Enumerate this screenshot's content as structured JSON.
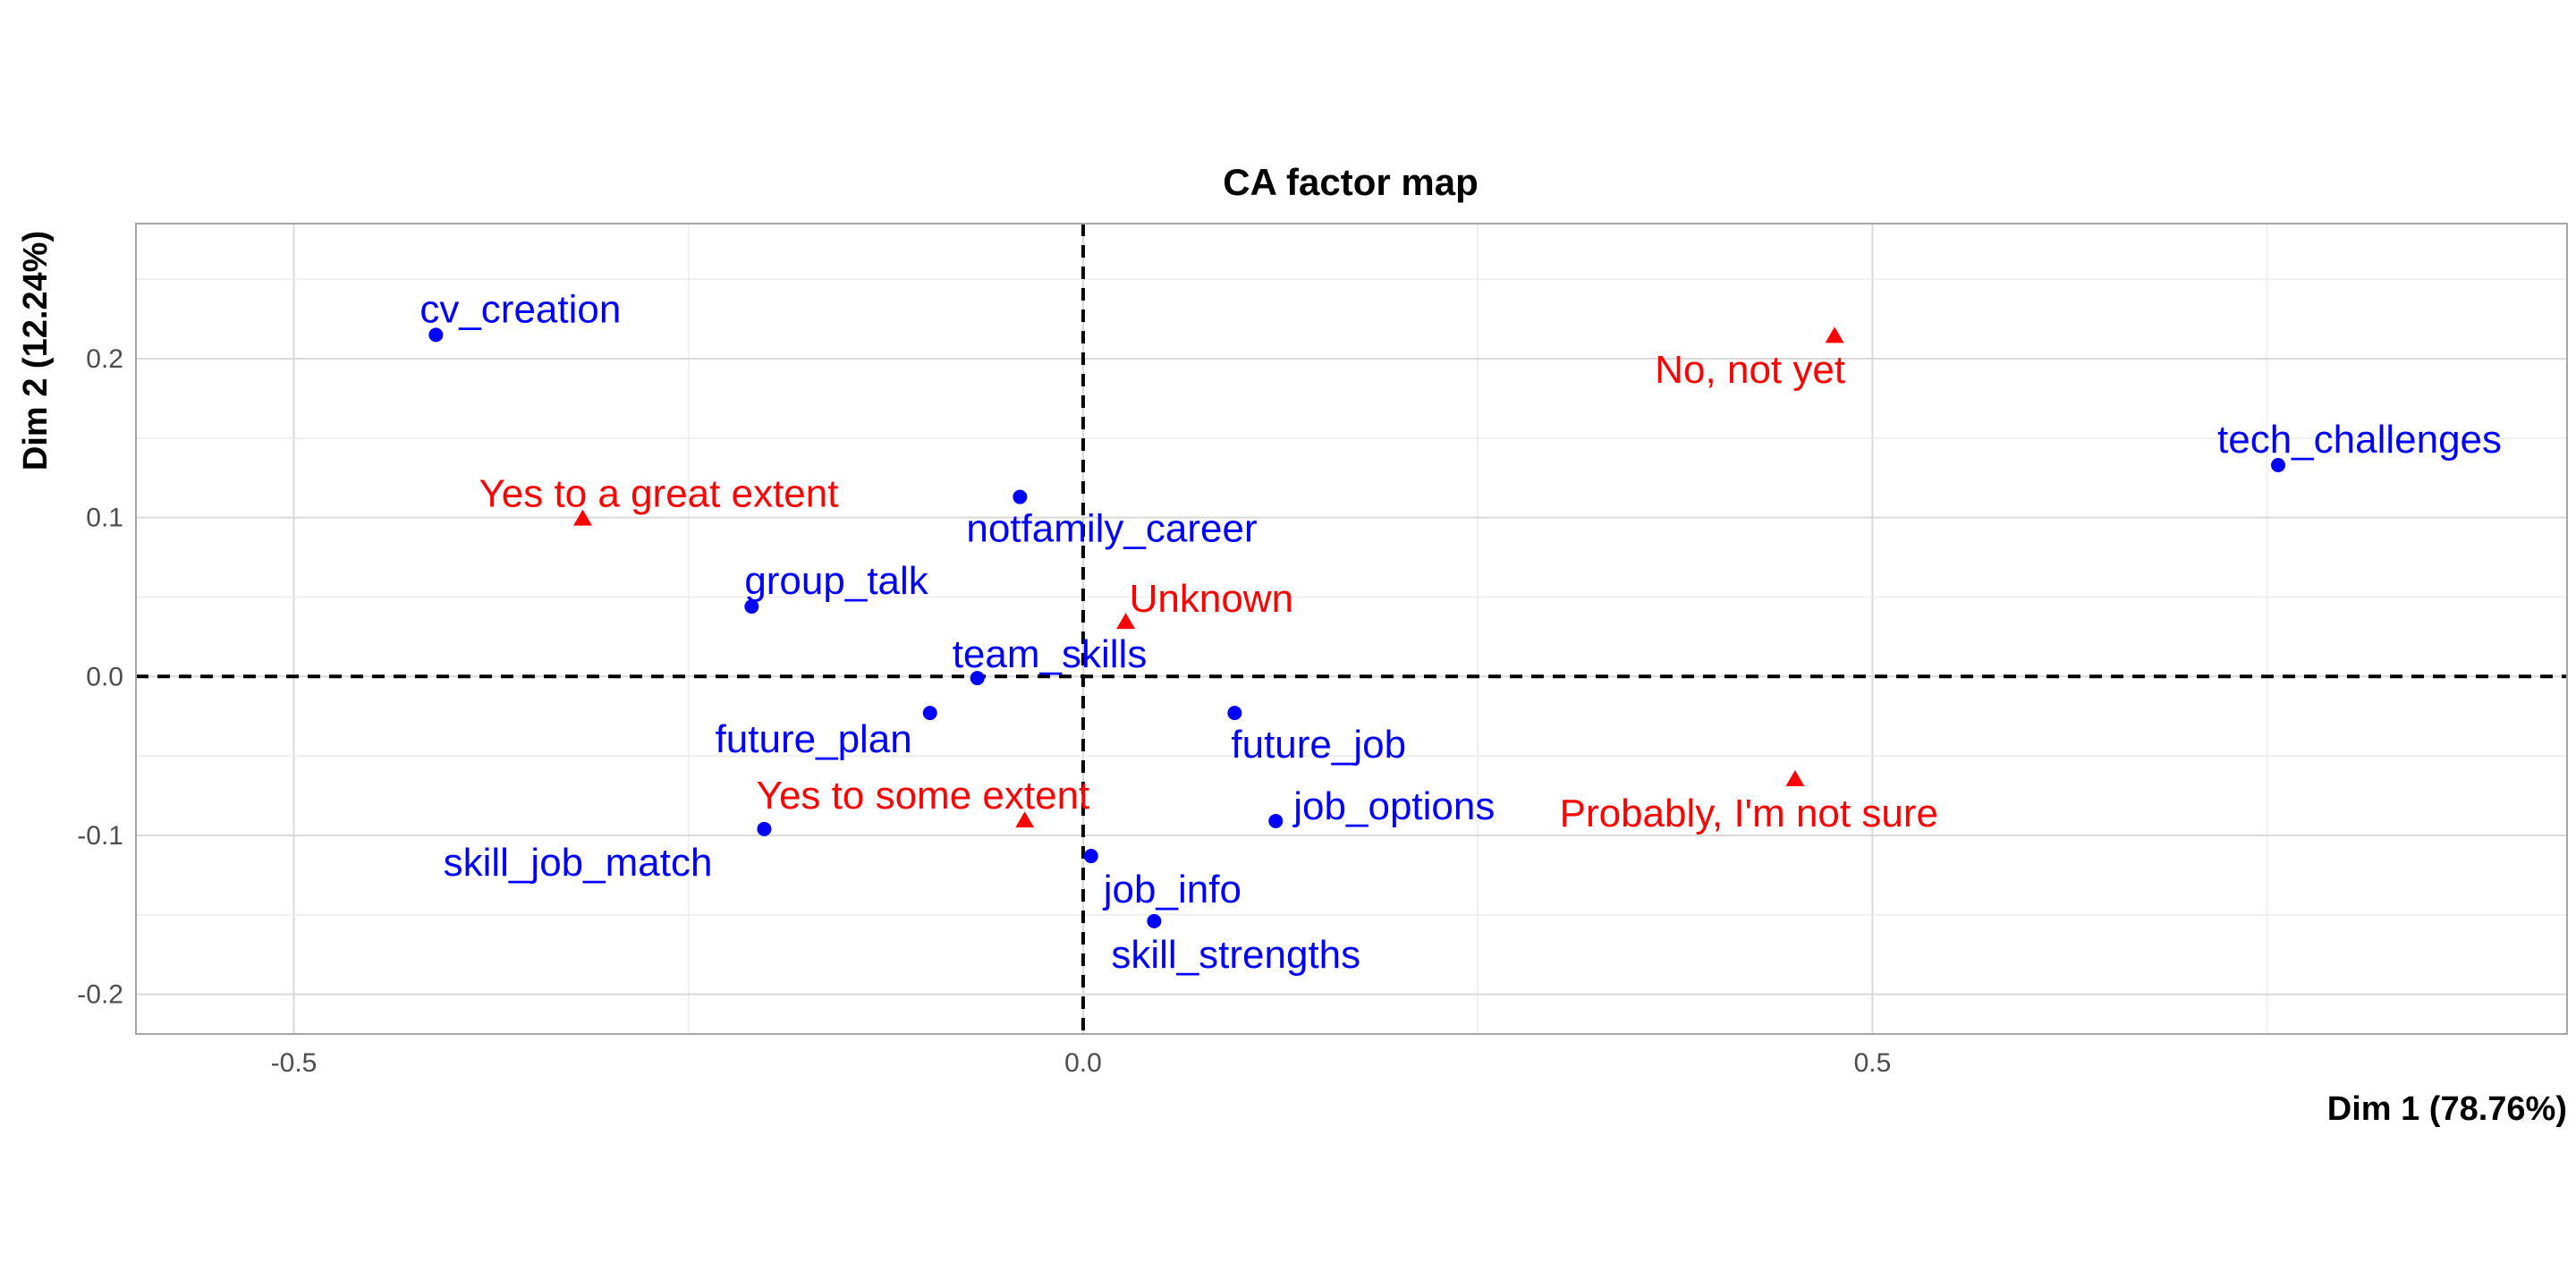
{
  "chart_data": {
    "type": "scatter",
    "title": "CA factor map",
    "xlabel": "Dim 1 (78.76%)",
    "ylabel": "Dim 2 (12.24%)",
    "xlim": [
      -0.6,
      0.94
    ],
    "ylim": [
      -0.225,
      0.285
    ],
    "x_ticks": [
      -0.5,
      0.0,
      0.5
    ],
    "x_tick_labels": [
      "-0.5",
      "0.0",
      "0.5"
    ],
    "y_ticks": [
      -0.2,
      -0.1,
      0.0,
      0.1,
      0.2
    ],
    "y_tick_labels": [
      "-0.2",
      "-0.1",
      "0.0",
      "0.1",
      "0.2"
    ],
    "grid": true,
    "reference_lines": {
      "x": 0,
      "y": 0
    },
    "colors": {
      "rows": "#0000ff",
      "cols": "#ff0000",
      "grid_major": "#d9d9d9",
      "grid_minor": "#ececec",
      "panel_border": "#a6a6a6"
    },
    "series": [
      {
        "name": "rows",
        "marker": "circle",
        "color": "#0000ff",
        "points": [
          {
            "label": "cv_creation",
            "x": -0.41,
            "y": 0.215,
            "anchor": "start",
            "pos": "above-right"
          },
          {
            "label": "notfamily_career",
            "x": -0.04,
            "y": 0.113,
            "anchor": "start",
            "pos": "below-left"
          },
          {
            "label": "group_talk",
            "x": -0.21,
            "y": 0.044,
            "anchor": "start",
            "pos": "above-right"
          },
          {
            "label": "team_skills",
            "x": -0.067,
            "y": -0.001,
            "anchor": "start",
            "pos": "above-left"
          },
          {
            "label": "future_plan",
            "x": -0.097,
            "y": -0.023,
            "anchor": "end",
            "pos": "below-left"
          },
          {
            "label": "future_job",
            "x": 0.096,
            "y": -0.023,
            "anchor": "start",
            "pos": "below-right"
          },
          {
            "label": "skill_job_match",
            "x": -0.202,
            "y": -0.096,
            "anchor": "end",
            "pos": "below-left"
          },
          {
            "label": "job_options",
            "x": 0.122,
            "y": -0.091,
            "anchor": "start",
            "pos": "above-right"
          },
          {
            "label": "job_info",
            "x": 0.005,
            "y": -0.113,
            "anchor": "start",
            "pos": "below-right"
          },
          {
            "label": "skill_strengths",
            "x": 0.045,
            "y": -0.154,
            "anchor": "start",
            "pos": "below-left"
          },
          {
            "label": "tech_challenges",
            "x": 0.757,
            "y": 0.133,
            "anchor": "start",
            "pos": "above-left"
          }
        ]
      },
      {
        "name": "cols",
        "marker": "triangle",
        "color": "#ff0000",
        "points": [
          {
            "label": "No, not yet",
            "x": 0.476,
            "y": 0.214,
            "anchor": "end",
            "pos": "below-left"
          },
          {
            "label": "Yes to a great extent",
            "x": -0.317,
            "y": 0.099,
            "anchor": "start",
            "pos": "above-left"
          },
          {
            "label": "Unknown",
            "x": 0.027,
            "y": 0.034,
            "anchor": "start",
            "pos": "above-right"
          },
          {
            "label": "Yes to some extent",
            "x": -0.037,
            "y": -0.091,
            "anchor": "start",
            "pos": "above-left"
          },
          {
            "label": "Probably, I'm not sure",
            "x": 0.451,
            "y": -0.065,
            "anchor": "end",
            "pos": "below-left"
          }
        ]
      }
    ]
  }
}
